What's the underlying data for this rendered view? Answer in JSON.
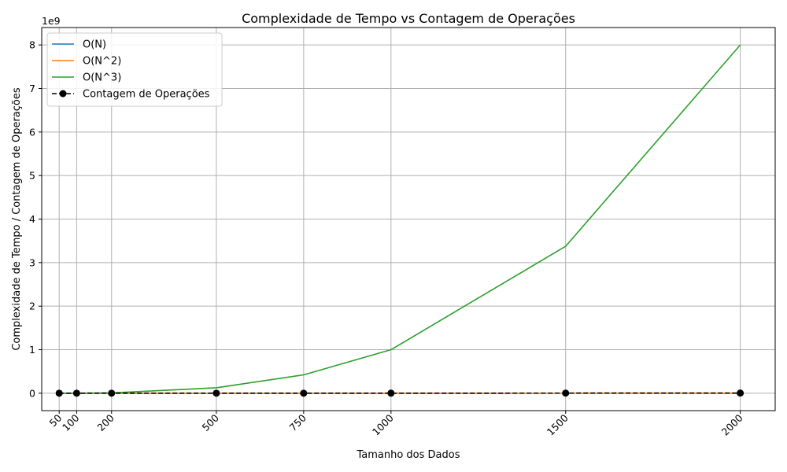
{
  "chart_data": {
    "type": "line",
    "title": "Complexidade de Tempo vs Contagem de Operações",
    "xlabel": "Tamanho dos Dados",
    "ylabel": "Complexidade de Tempo / Contagem de Operações",
    "y_multiplier_label": "1e9",
    "x": [
      50,
      100,
      200,
      500,
      750,
      1000,
      1500,
      2000
    ],
    "x_tick_labels": [
      "50",
      "100",
      "200",
      "500",
      "750",
      "1000",
      "1500",
      "2000"
    ],
    "y_ticks": [
      0,
      1,
      2,
      3,
      4,
      5,
      6,
      7,
      8
    ],
    "y_tick_labels": [
      "0",
      "1",
      "2",
      "3",
      "4",
      "5",
      "6",
      "7",
      "8"
    ],
    "xlim": [
      0,
      2100
    ],
    "ylim": [
      -0.4,
      8.4
    ],
    "y_scale_factor": 1000000000,
    "grid": true,
    "legend_position": "top-left",
    "series": [
      {
        "name": "O(N)",
        "color": "#1f77b4",
        "style": "solid",
        "marker": "none",
        "values": [
          50,
          100,
          200,
          500,
          750,
          1000,
          1500,
          2000
        ]
      },
      {
        "name": "O(N^2)",
        "color": "#ff7f0e",
        "style": "solid",
        "marker": "none",
        "values": [
          2500,
          10000,
          40000,
          250000,
          562500,
          1000000,
          2250000,
          4000000
        ]
      },
      {
        "name": "O(N^3)",
        "color": "#2ca02c",
        "style": "solid",
        "marker": "none",
        "values": [
          125000,
          1000000,
          8000000,
          125000000,
          421875000,
          1000000000,
          3375000000,
          8000000000
        ]
      },
      {
        "name": "Contagem de Operações",
        "color": "#000000",
        "style": "dashed",
        "marker": "circle",
        "values": [
          2500,
          10000,
          40000,
          250000,
          562500,
          1000000,
          2250000,
          4000000
        ]
      }
    ]
  }
}
